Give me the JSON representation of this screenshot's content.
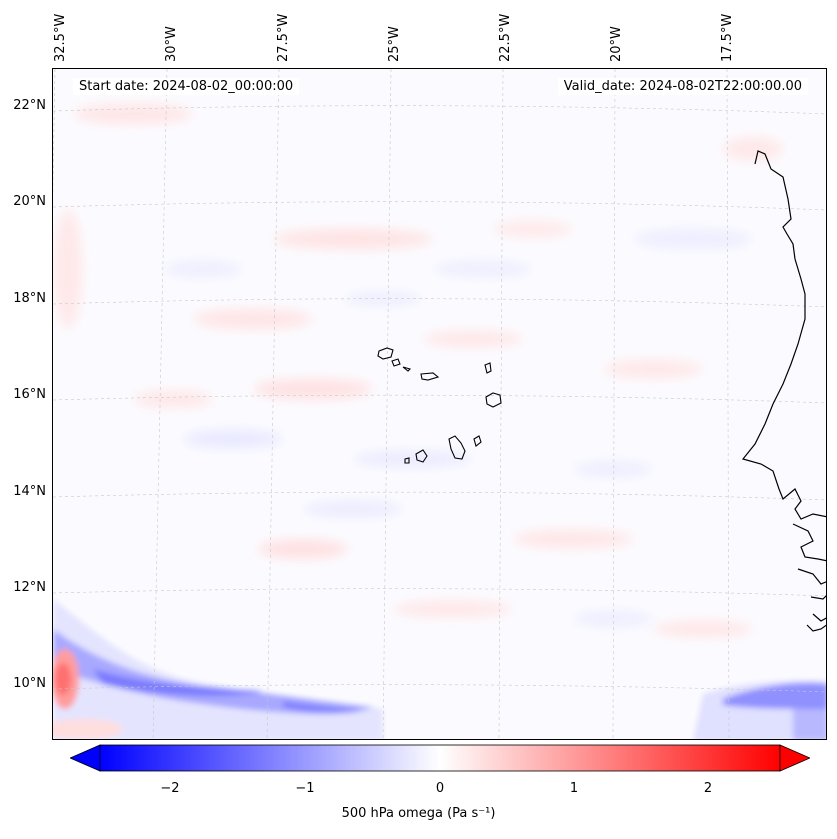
{
  "header": {
    "start_date": "Start date: 2024-08-02_00:00:00",
    "valid_date": "Valid_date: 2024-08-02T22:00:00.00"
  },
  "axes": {
    "lon_labels": [
      "32.5°W",
      "30°W",
      "27.5°W",
      "25°W",
      "22.5°W",
      "20°W",
      "17.5°W"
    ],
    "lat_labels": [
      "22°N",
      "20°N",
      "18°N",
      "16°N",
      "14°N",
      "12°N",
      "10°N"
    ]
  },
  "colorbar": {
    "title": "500 hPa omega (Pa s⁻¹)",
    "ticks": [
      "−2",
      "−1",
      "0",
      "1",
      "2"
    ],
    "range": [
      -2.5,
      2.5
    ],
    "colors": {
      "negative": "#0000ff",
      "zero": "#ffffff",
      "positive": "#ff0000"
    }
  },
  "map": {
    "field": "500 hPa omega",
    "features": [
      "Cape Verde islands",
      "West African coastline"
    ]
  }
}
